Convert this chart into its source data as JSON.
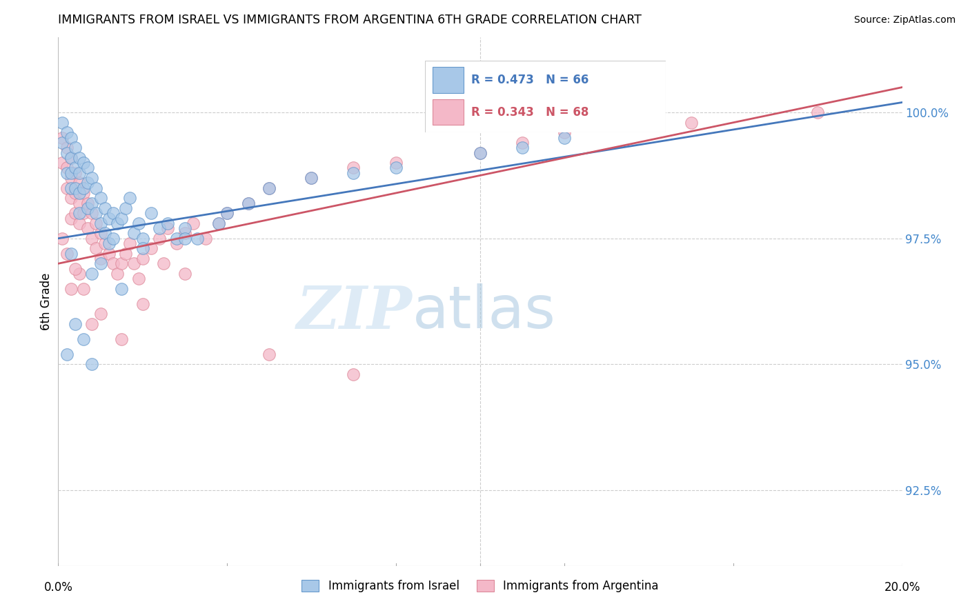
{
  "title": "IMMIGRANTS FROM ISRAEL VS IMMIGRANTS FROM ARGENTINA 6TH GRADE CORRELATION CHART",
  "source": "Source: ZipAtlas.com",
  "ylabel": "6th Grade",
  "yticks": [
    92.5,
    95.0,
    97.5,
    100.0
  ],
  "ytick_labels": [
    "92.5%",
    "95.0%",
    "97.5%",
    "100.0%"
  ],
  "xmin": 0.0,
  "xmax": 0.2,
  "ymin": 91.0,
  "ymax": 101.5,
  "legend_israel": "Immigrants from Israel",
  "legend_argentina": "Immigrants from Argentina",
  "R_israel": 0.473,
  "N_israel": 66,
  "R_argentina": 0.343,
  "N_argentina": 68,
  "color_israel": "#a8c8e8",
  "color_argentina": "#f4b8c8",
  "edge_israel": "#6699cc",
  "edge_argentina": "#dd8899",
  "line_color_israel": "#4477bb",
  "line_color_argentina": "#cc5566",
  "watermark_zip": "ZIP",
  "watermark_atlas": "atlas",
  "israel_x": [
    0.001,
    0.001,
    0.002,
    0.002,
    0.002,
    0.003,
    0.003,
    0.003,
    0.003,
    0.004,
    0.004,
    0.004,
    0.005,
    0.005,
    0.005,
    0.005,
    0.006,
    0.006,
    0.007,
    0.007,
    0.007,
    0.008,
    0.008,
    0.009,
    0.009,
    0.01,
    0.01,
    0.011,
    0.011,
    0.012,
    0.012,
    0.013,
    0.013,
    0.014,
    0.015,
    0.016,
    0.017,
    0.018,
    0.019,
    0.02,
    0.022,
    0.024,
    0.026,
    0.028,
    0.03,
    0.033,
    0.038,
    0.04,
    0.045,
    0.05,
    0.06,
    0.07,
    0.08,
    0.1,
    0.11,
    0.12,
    0.003,
    0.008,
    0.01,
    0.015,
    0.02,
    0.03,
    0.002,
    0.004,
    0.006,
    0.008
  ],
  "israel_y": [
    99.8,
    99.4,
    99.6,
    99.2,
    98.8,
    99.5,
    99.1,
    98.8,
    98.5,
    99.3,
    98.9,
    98.5,
    99.1,
    98.8,
    98.4,
    98.0,
    99.0,
    98.5,
    98.9,
    98.6,
    98.1,
    98.7,
    98.2,
    98.5,
    98.0,
    98.3,
    97.8,
    98.1,
    97.6,
    97.9,
    97.4,
    98.0,
    97.5,
    97.8,
    97.9,
    98.1,
    98.3,
    97.6,
    97.8,
    97.5,
    98.0,
    97.7,
    97.8,
    97.5,
    97.7,
    97.5,
    97.8,
    98.0,
    98.2,
    98.5,
    98.7,
    98.8,
    98.9,
    99.2,
    99.3,
    99.5,
    97.2,
    96.8,
    97.0,
    96.5,
    97.3,
    97.5,
    95.2,
    95.8,
    95.5,
    95.0
  ],
  "argentina_x": [
    0.001,
    0.001,
    0.002,
    0.002,
    0.002,
    0.003,
    0.003,
    0.003,
    0.003,
    0.004,
    0.004,
    0.004,
    0.005,
    0.005,
    0.005,
    0.006,
    0.006,
    0.007,
    0.007,
    0.008,
    0.008,
    0.009,
    0.009,
    0.01,
    0.01,
    0.011,
    0.012,
    0.013,
    0.014,
    0.015,
    0.016,
    0.017,
    0.018,
    0.019,
    0.02,
    0.022,
    0.024,
    0.026,
    0.028,
    0.03,
    0.032,
    0.035,
    0.038,
    0.04,
    0.045,
    0.05,
    0.06,
    0.07,
    0.08,
    0.1,
    0.11,
    0.12,
    0.15,
    0.18,
    0.003,
    0.005,
    0.008,
    0.01,
    0.015,
    0.02,
    0.025,
    0.03,
    0.05,
    0.07,
    0.001,
    0.002,
    0.004,
    0.006
  ],
  "argentina_y": [
    99.5,
    99.0,
    99.3,
    98.9,
    98.5,
    99.1,
    98.7,
    98.3,
    97.9,
    98.8,
    98.4,
    98.0,
    98.6,
    98.2,
    97.8,
    98.4,
    98.0,
    98.2,
    97.7,
    98.0,
    97.5,
    97.8,
    97.3,
    97.6,
    97.1,
    97.4,
    97.2,
    97.0,
    96.8,
    97.0,
    97.2,
    97.4,
    97.0,
    96.7,
    97.1,
    97.3,
    97.5,
    97.7,
    97.4,
    97.6,
    97.8,
    97.5,
    97.8,
    98.0,
    98.2,
    98.5,
    98.7,
    98.9,
    99.0,
    99.2,
    99.4,
    99.6,
    99.8,
    100.0,
    96.5,
    96.8,
    95.8,
    96.0,
    95.5,
    96.2,
    97.0,
    96.8,
    95.2,
    94.8,
    97.5,
    97.2,
    96.9,
    96.5
  ],
  "line_israel_x0": 0.0,
  "line_israel_y0": 97.5,
  "line_israel_x1": 0.2,
  "line_israel_y1": 100.2,
  "line_arg_x0": 0.0,
  "line_arg_y0": 97.0,
  "line_arg_x1": 0.2,
  "line_arg_y1": 100.5
}
